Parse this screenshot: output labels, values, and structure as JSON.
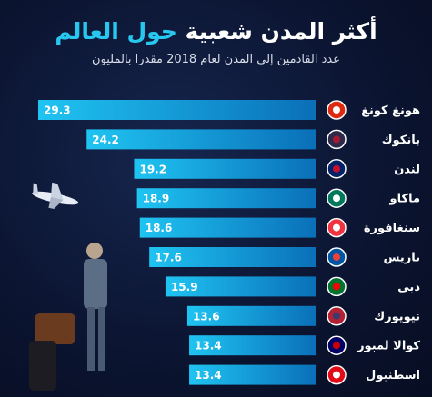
{
  "chart_data": {
    "type": "bar",
    "title": "أكثر المدن شعبية",
    "title_highlight": "حول العالم",
    "subtitle": "عدد القادمين إلى المدن لعام 2018 مقدرا بالمليون",
    "categories": [
      "هونغ كونغ",
      "بانكوك",
      "لندن",
      "ماكاو",
      "سنغافورة",
      "باريس",
      "دبي",
      "نيويورك",
      "كوالا لمبور",
      "اسطنبول"
    ],
    "values": [
      29.3,
      24.2,
      19.2,
      18.9,
      18.6,
      17.6,
      15.9,
      13.6,
      13.4,
      13.4
    ]
  }
}
